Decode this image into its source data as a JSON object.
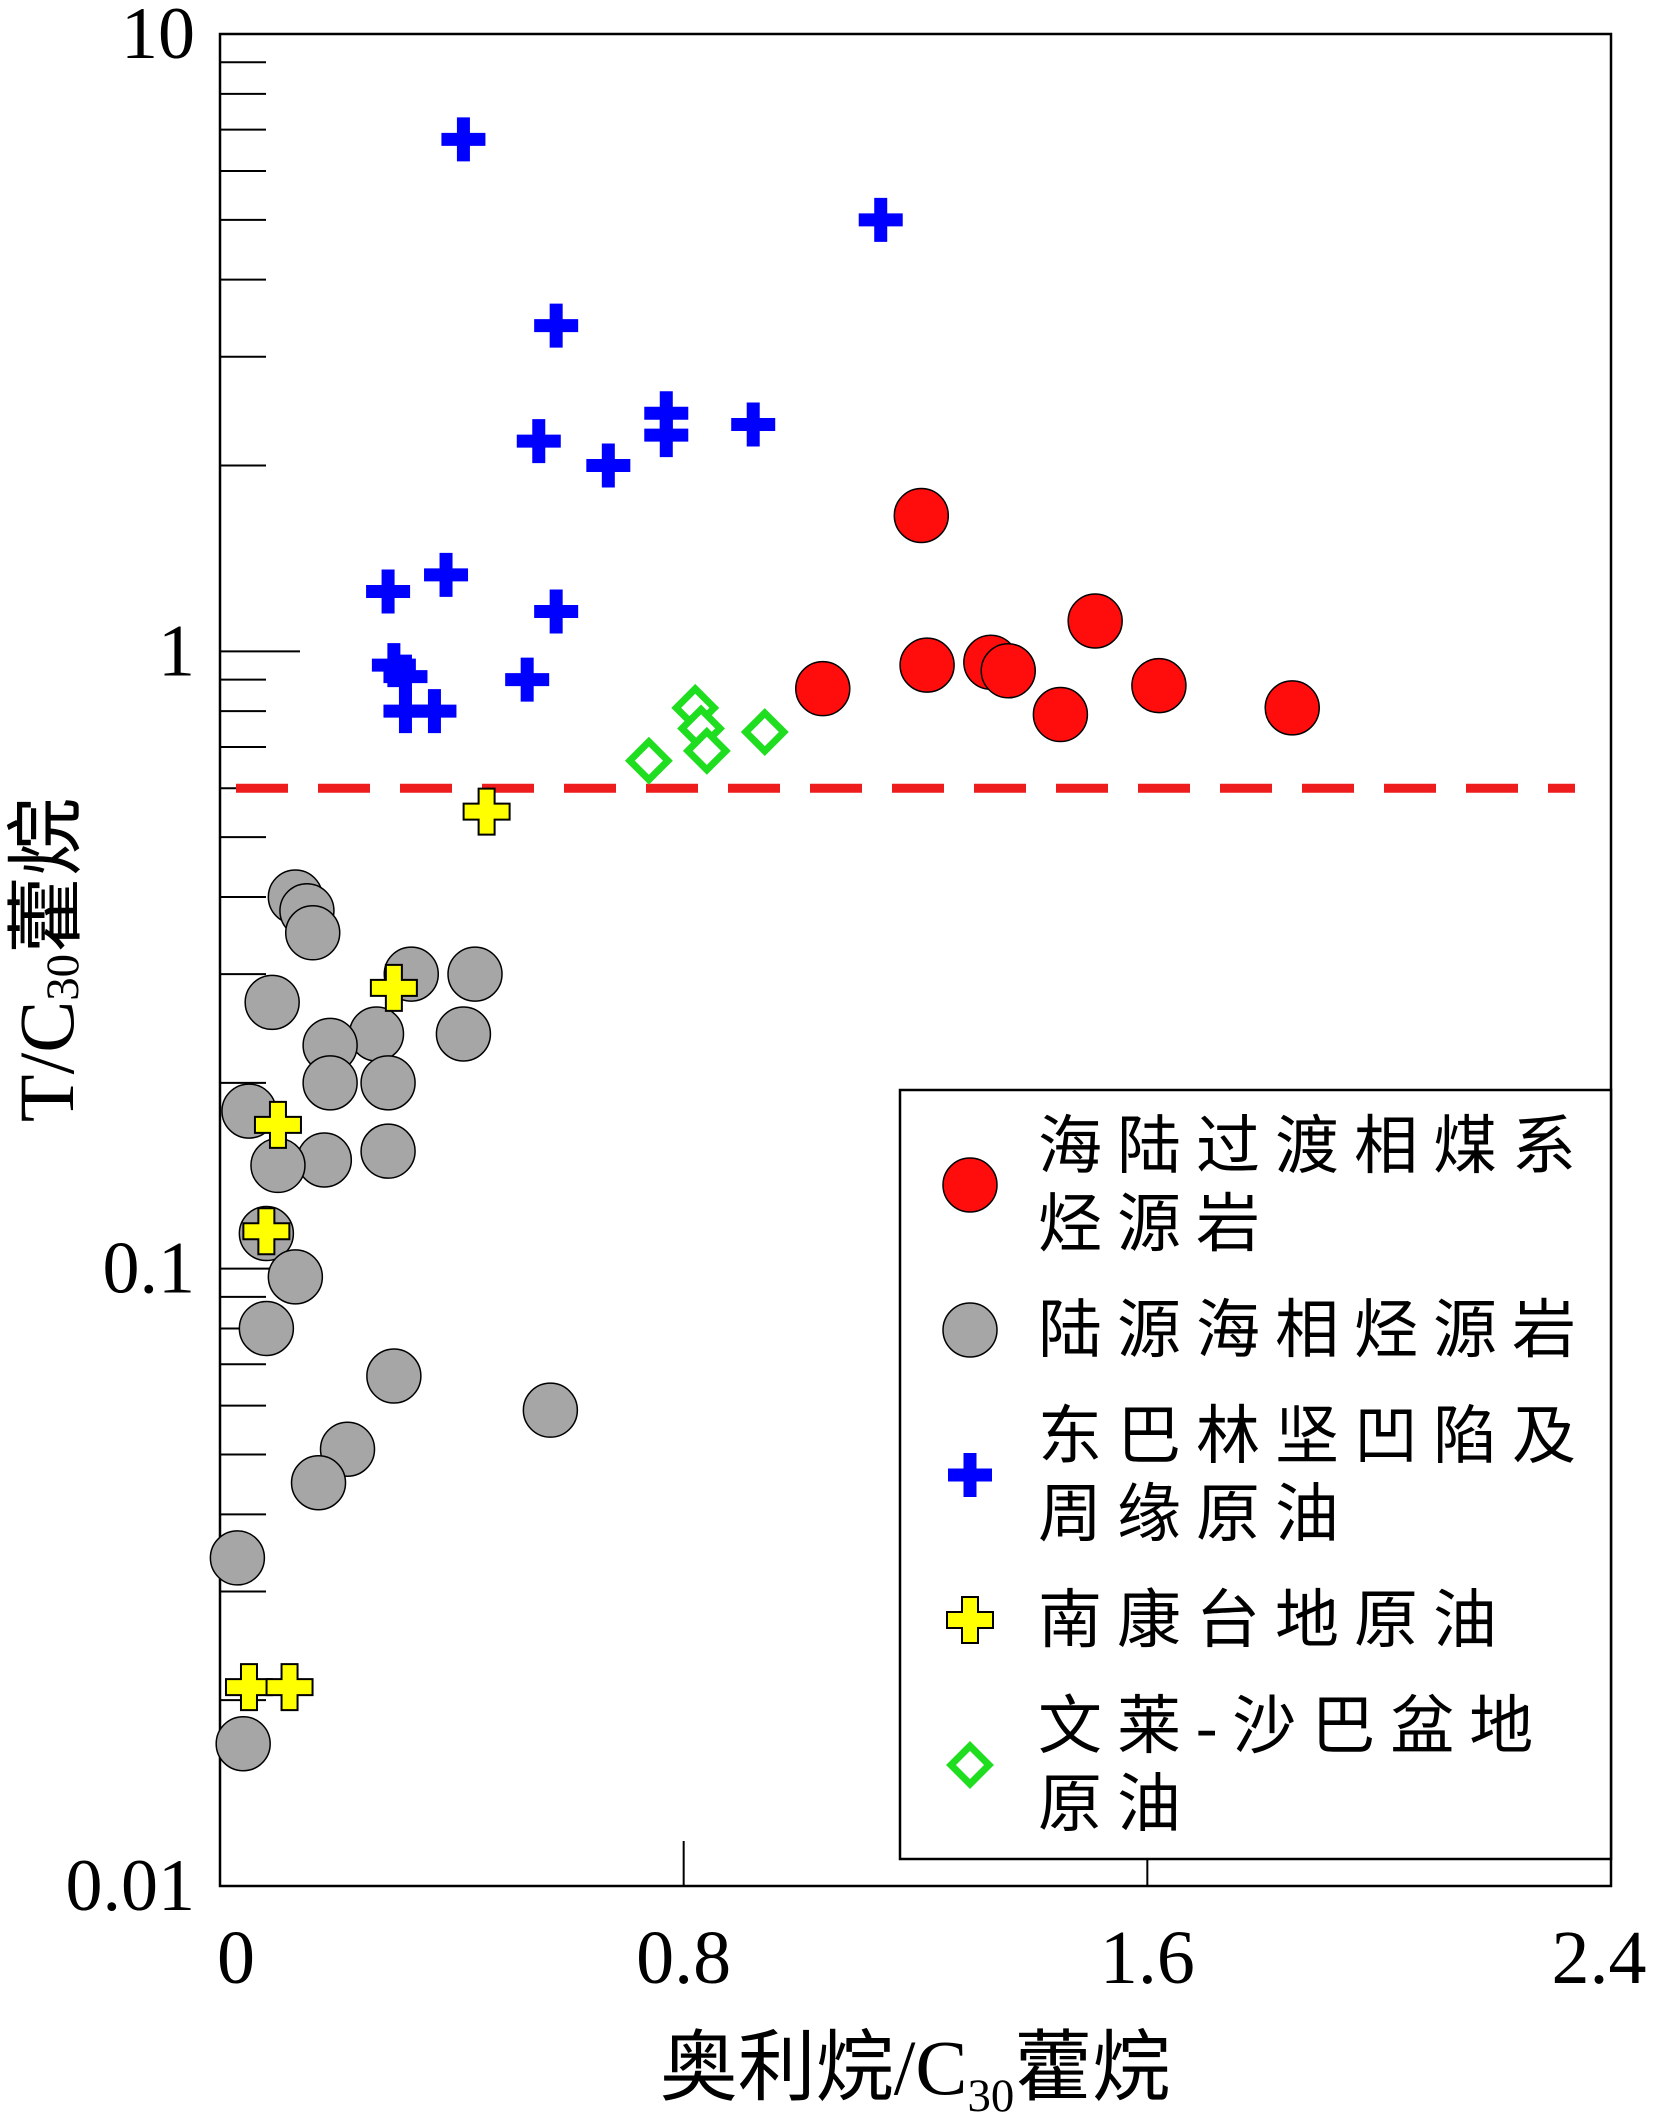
{
  "chart_data": {
    "type": "scatter",
    "xlabel": "奥利烷/C30藿烷",
    "ylabel": "T/C30藿烷",
    "xlim": [
      0,
      2.4
    ],
    "ylim": [
      0.01,
      10
    ],
    "yscale": "log",
    "xtick_labels": [
      "0",
      "0.8",
      "1.6",
      "2.4"
    ],
    "ytick_labels": [
      "0.01",
      "0.1",
      "1",
      "10"
    ],
    "grid": false,
    "legend_position": "bottom-right",
    "threshold_line": {
      "y": 0.6,
      "style": "dashed",
      "color": "#ee1c1c"
    },
    "series": [
      {
        "name": "海陆过渡相煤系烃源岩",
        "marker": "circle",
        "color": "#ff0d0d",
        "x": [
          1.04,
          1.21,
          1.22,
          1.33,
          1.36,
          1.45,
          1.51,
          1.62,
          1.85
        ],
        "y": [
          0.87,
          1.66,
          0.95,
          0.96,
          0.93,
          0.79,
          1.12,
          0.88,
          0.81
        ]
      },
      {
        "name": "陆源海相烃源岩",
        "marker": "circle",
        "color": "#a6a6a6",
        "x": [
          0.13,
          0.15,
          0.16,
          0.33,
          0.44,
          0.09,
          0.27,
          0.19,
          0.42,
          0.19,
          0.29,
          0.05,
          0.18,
          0.29,
          0.1,
          0.08,
          0.13,
          0.08,
          0.3,
          0.57,
          0.22,
          0.17,
          0.03,
          0.04
        ],
        "y": [
          0.4,
          0.38,
          0.35,
          0.3,
          0.3,
          0.27,
          0.24,
          0.23,
          0.24,
          0.2,
          0.2,
          0.18,
          0.15,
          0.155,
          0.147,
          0.114,
          0.097,
          0.08,
          0.067,
          0.059,
          0.051,
          0.045,
          0.034,
          0.017
        ]
      },
      {
        "name": "东巴林坚凹陷及周缘原油",
        "marker": "cross",
        "color": "#0000ff",
        "x": [
          0.42,
          1.14,
          0.58,
          0.55,
          0.67,
          0.77,
          0.77,
          0.92,
          0.39,
          0.29,
          0.58,
          0.3,
          0.32,
          0.53,
          0.32,
          0.37
        ],
        "y": [
          6.75,
          5.0,
          3.37,
          2.19,
          2.0,
          2.43,
          2.24,
          2.33,
          1.33,
          1.25,
          1.16,
          0.95,
          0.91,
          0.9,
          0.8,
          0.8
        ]
      },
      {
        "name": "南康台地原油",
        "marker": "cross-outlined",
        "color": "#ffff00",
        "x": [
          0.46,
          0.3,
          0.1,
          0.08,
          0.05,
          0.12
        ],
        "y": [
          0.55,
          0.285,
          0.171,
          0.115,
          0.021,
          0.021
        ]
      },
      {
        "name": "文莱-沙巴盆地原油",
        "marker": "diamond",
        "color": "#1fdd1f",
        "x": [
          0.74,
          0.82,
          0.83,
          0.84,
          0.94
        ],
        "y": [
          0.665,
          0.81,
          0.75,
          0.69,
          0.74
        ]
      }
    ]
  }
}
